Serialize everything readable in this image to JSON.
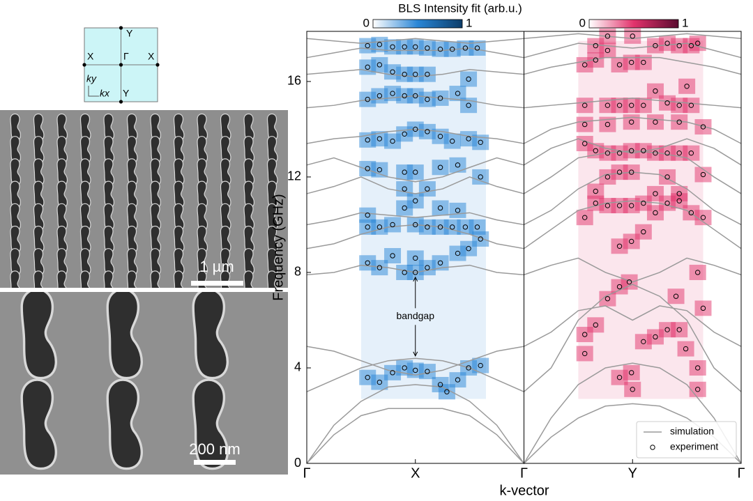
{
  "brillouin_zone": {
    "labels": {
      "top": "Y",
      "left": "X",
      "center": "Γ",
      "right": "X",
      "bottom": "Y",
      "ky": "ky",
      "kx": "kx"
    }
  },
  "sem_images": {
    "top_scale": "1 µm",
    "bottom_scale": "200 nm"
  },
  "chart_data": {
    "type": "line",
    "colorbar_title": "BLS Intensity fit (arb.u.)",
    "ylabel": "Frequency (GHz)",
    "xlabel": "k-vector",
    "xlim": [
      0,
      4
    ],
    "ylim": [
      0,
      18.1
    ],
    "yticks": [
      0,
      4,
      8,
      12,
      16
    ],
    "xticks": [
      {
        "value": 0,
        "label": "Γ"
      },
      {
        "value": 1,
        "label": "X"
      },
      {
        "value": 2,
        "label": "Γ"
      },
      {
        "value": 3,
        "label": "Y"
      },
      {
        "value": 4,
        "label": "Γ"
      }
    ],
    "legend": "lower right",
    "heatmaps": [
      {
        "k_range": [
          0.5,
          1.65
        ],
        "f_range": [
          2.7,
          17.7
        ],
        "ticks": [
          0,
          1
        ],
        "colormap": [
          "#ffffff",
          "#2a86d6",
          "#0d3d69"
        ]
      },
      {
        "k_range": [
          2.5,
          3.65
        ],
        "f_range": [
          2.7,
          17.7
        ],
        "ticks": [
          0,
          1
        ],
        "colormap": [
          "#ffffff",
          "#e2336c",
          "#5a0b2f"
        ]
      }
    ],
    "annotation": {
      "text": "bandgap",
      "x": 1,
      "y_from": 7.8,
      "y_to": 4.5
    },
    "x": [
      0,
      0.25,
      0.5,
      0.75,
      1,
      1.25,
      1.5,
      1.75,
      2,
      2.25,
      2.5,
      2.75,
      3,
      3.25,
      3.5,
      3.75,
      4
    ],
    "simulation": {
      "name": "simulation",
      "color": "#9a9a9a",
      "bands": [
        [
          0,
          1.2,
          2.0,
          2.3,
          2.3,
          2.3,
          2.0,
          1.2,
          0,
          1.1,
          1.9,
          2.4,
          2.5,
          2.4,
          1.9,
          1.1,
          0
        ],
        [
          0,
          1.6,
          2.6,
          3.2,
          3.3,
          3.2,
          2.6,
          1.6,
          0,
          1.9,
          3.3,
          4.0,
          4.2,
          4.0,
          3.3,
          1.9,
          0
        ],
        [
          3.0,
          3.5,
          4.0,
          4.3,
          4.4,
          4.3,
          4.0,
          3.5,
          3.0,
          4.0,
          6.0,
          7.0,
          7.5,
          7.0,
          6.0,
          4.0,
          3.0
        ],
        [
          4.9,
          4.7,
          4.3,
          3.9,
          3.7,
          3.9,
          4.3,
          4.7,
          4.9,
          5.5,
          6.4,
          6.6,
          6.0,
          6.6,
          6.4,
          5.5,
          4.9
        ],
        [
          7.9,
          8.0,
          8.3,
          8.2,
          8.0,
          8.2,
          8.3,
          8.0,
          7.9,
          8.3,
          8.6,
          8.0,
          7.6,
          8.0,
          8.6,
          8.3,
          7.9
        ],
        [
          9.0,
          9.2,
          9.6,
          9.9,
          10.0,
          9.9,
          9.6,
          9.2,
          9.0,
          9.8,
          10.6,
          10.9,
          11.0,
          10.9,
          10.6,
          9.8,
          9.0
        ],
        [
          10.0,
          10.2,
          10.5,
          10.4,
          10.3,
          10.4,
          10.5,
          10.2,
          10.0,
          10.6,
          11.5,
          12.1,
          12.2,
          12.1,
          11.5,
          10.6,
          10.0
        ],
        [
          11.3,
          11.6,
          12.0,
          11.5,
          11.3,
          11.5,
          12.0,
          11.6,
          11.3,
          12.0,
          12.8,
          13.0,
          13.1,
          13.0,
          12.8,
          12.0,
          11.3
        ],
        [
          12.5,
          12.8,
          12.4,
          12.0,
          11.8,
          12.0,
          12.4,
          12.8,
          12.5,
          13.2,
          13.6,
          13.2,
          13.0,
          13.2,
          13.6,
          13.2,
          12.5
        ],
        [
          13.4,
          13.6,
          13.7,
          13.9,
          14.0,
          13.9,
          13.7,
          13.6,
          13.4,
          14.0,
          14.3,
          14.4,
          14.5,
          14.4,
          14.3,
          14.0,
          13.4
        ],
        [
          14.9,
          15.0,
          15.2,
          15.3,
          15.4,
          15.3,
          15.2,
          15.0,
          14.9,
          15.0,
          15.1,
          15.2,
          15.3,
          15.2,
          15.1,
          15.0,
          14.9
        ],
        [
          16.3,
          16.4,
          16.5,
          16.3,
          16.2,
          16.3,
          16.5,
          16.4,
          16.3,
          16.6,
          16.8,
          17.0,
          17.0,
          17.0,
          16.8,
          16.6,
          16.3
        ],
        [
          17.0,
          17.2,
          17.4,
          17.3,
          17.3,
          17.3,
          17.4,
          17.2,
          17.0,
          17.3,
          17.6,
          17.5,
          17.4,
          17.5,
          17.6,
          17.3,
          17.0
        ],
        [
          17.8,
          17.7,
          17.6,
          17.7,
          17.8,
          17.7,
          17.6,
          17.7,
          17.8,
          17.9,
          18.0,
          17.9,
          17.8,
          17.9,
          18.0,
          17.9,
          17.8
        ]
      ]
    },
    "experiment": {
      "name": "experiment",
      "x": [
        0.56,
        0.67,
        0.79,
        0.9,
        1.0,
        1.11,
        1.23,
        1.29,
        1.39,
        1.49,
        1.6,
        0.56,
        0.67,
        0.79,
        0.9,
        1.0,
        1.0,
        1.11,
        1.23,
        1.39,
        1.49,
        1.6,
        0.56,
        0.56,
        0.67,
        0.79,
        0.9,
        1.0,
        1.11,
        1.23,
        1.34,
        1.46,
        1.57,
        1.39,
        1.23,
        0.56,
        0.67,
        0.9,
        1.0,
        1.0,
        0.9,
        1.11,
        1.23,
        1.39,
        1.6,
        0.56,
        0.67,
        0.79,
        0.9,
        1.0,
        1.11,
        1.23,
        1.34,
        1.49,
        1.6,
        0.56,
        0.67,
        0.79,
        0.9,
        1.0,
        1.11,
        1.23,
        1.39,
        1.49,
        0.56,
        0.67,
        0.79,
        0.9,
        1.0,
        1.11,
        1.49,
        0.56,
        0.67,
        0.79,
        0.9,
        1.0,
        1.11,
        1.23,
        1.34,
        1.46,
        1.57,
        2.56,
        2.56,
        2.66,
        2.77,
        2.88,
        2.99,
        3.0,
        3.1,
        3.21,
        3.32,
        3.43,
        3.49,
        3.6,
        3.6,
        3.65,
        3.4,
        3.6,
        2.88,
        2.97,
        2.88,
        2.99,
        3.1,
        3.21,
        2.56,
        2.66,
        2.77,
        2.88,
        2.99,
        3.1,
        3.32,
        3.43,
        3.54,
        3.65,
        2.66,
        3.21,
        3.43,
        2.77,
        2.88,
        2.99,
        3.32,
        3.65,
        2.56,
        2.66,
        2.77,
        2.88,
        2.99,
        3.1,
        3.21,
        3.32,
        3.43,
        3.54,
        3.65,
        2.56,
        2.77,
        2.99,
        3.21,
        3.43,
        2.56,
        2.77,
        2.88,
        2.99,
        3.1,
        3.32,
        3.43,
        3.54,
        3.21,
        3.5,
        2.56,
        2.66,
        2.77,
        2.88,
        2.99,
        3.1,
        2.66,
        2.77,
        3.0,
        3.21,
        3.32,
        3.43,
        3.54,
        3.6
      ],
      "y": [
        3.6,
        3.4,
        3.8,
        4.0,
        3.9,
        3.85,
        3.3,
        3.0,
        3.5,
        4.0,
        4.1,
        8.4,
        8.2,
        8.7,
        8.0,
        8.0,
        8.6,
        8.2,
        8.4,
        8.8,
        9.0,
        9.4,
        10.4,
        9.9,
        9.9,
        10.0,
        10.7,
        10.0,
        9.9,
        9.9,
        9.9,
        9.9,
        9.9,
        10.6,
        10.7,
        12.35,
        12.3,
        12.2,
        12.2,
        11.0,
        11.5,
        11.5,
        12.4,
        12.5,
        12.0,
        13.55,
        13.6,
        13.5,
        13.8,
        14.0,
        13.9,
        13.7,
        13.5,
        13.6,
        13.45,
        15.25,
        15.4,
        15.5,
        15.4,
        15.4,
        15.25,
        15.3,
        15.5,
        15.0,
        16.6,
        16.7,
        16.4,
        16.3,
        16.3,
        16.3,
        16.1,
        17.5,
        17.55,
        17.45,
        17.45,
        17.45,
        17.4,
        17.35,
        17.35,
        17.4,
        17.4,
        4.6,
        5.4,
        5.8,
        6.9,
        3.6,
        3.8,
        3.1,
        5.1,
        5.3,
        5.6,
        5.6,
        4.8,
        4.0,
        3.1,
        6.5,
        7.0,
        8.0,
        7.4,
        7.6,
        9.1,
        9.3,
        9.7,
        10.5,
        10.3,
        10.9,
        10.8,
        10.8,
        10.8,
        10.9,
        10.9,
        11.0,
        10.5,
        10.3,
        11.4,
        11.3,
        11.3,
        12.0,
        12.2,
        12.2,
        12.0,
        12.1,
        13.4,
        13.1,
        13.0,
        13.0,
        13.1,
        13.1,
        13.0,
        13.0,
        13.0,
        13.0,
        14.1,
        14.2,
        14.2,
        14.3,
        14.3,
        14.3,
        15.0,
        15.0,
        15.0,
        15.0,
        15.0,
        15.1,
        15.0,
        15.0,
        15.6,
        15.8,
        16.7,
        16.9,
        17.3,
        16.7,
        16.8,
        16.8,
        17.5,
        17.9,
        17.9,
        17.5,
        17.6,
        17.5,
        17.5,
        17.6
      ]
    }
  }
}
